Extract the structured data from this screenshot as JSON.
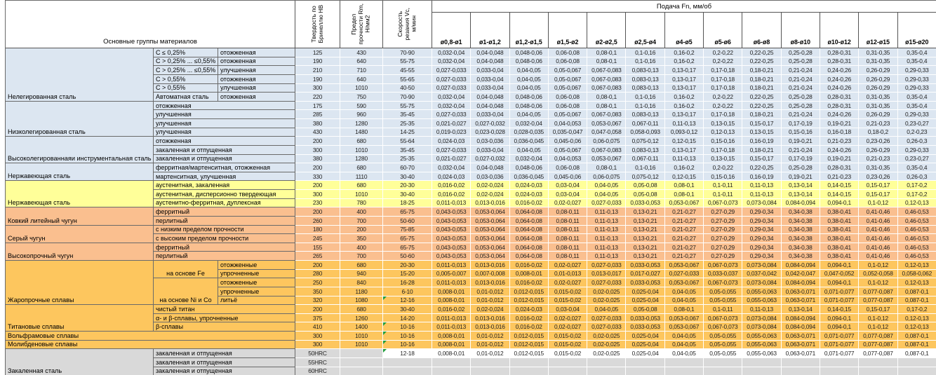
{
  "header": {
    "materials_label": "Основные группы материалов",
    "col_hb": "Твердость по\nБринеллю HB",
    "col_rm": "Предел\nпрочности Rm,\nН/мм2",
    "col_vc": "Скорость\nрезания Vc,\nм/мин",
    "feed_label": "Подача Fn, мм/об",
    "diameters": [
      "ø0,8-ø1",
      "ø1-ø1,2",
      "ø1,2-ø1,5",
      "ø1,5-ø2",
      "ø2-ø2,5",
      "ø2,5-ø4",
      "ø4-ø5",
      "ø5-ø6",
      "ø6-ø8",
      "ø8-ø10",
      "ø10-ø12",
      "ø12-ø15",
      "ø15-ø20"
    ]
  },
  "colors": {
    "blue": "#dce6f1",
    "yellow": "#ffff99",
    "orange": "#fabf8f",
    "gold": "#fdc65e",
    "gray": "#d9d9d9",
    "marker": "#1f9d3a"
  },
  "patterns": {
    "A": [
      "0,032-0,04",
      "0,04-0,048",
      "0,048-0,06",
      "0,06-0,08",
      "0,08-0,1",
      "0,1-0,16",
      "0,16-0,2",
      "0,2-0,22",
      "0,22-0,25",
      "0,25-0,28",
      "0,28-0,31",
      "0,31-0,35",
      "0,35-0,4"
    ],
    "B": [
      "0,027-0,033",
      "0,033-0,04",
      "0,04-0,05",
      "0,05-0,067",
      "0,067-0,083",
      "0,083-0,13",
      "0,13-0,17",
      "0,17-0,18",
      "0,18-0,21",
      "0,21-0,24",
      "0,24-0,26",
      "0,26-0,29",
      "0,29-0,33"
    ],
    "C": [
      "0,021-0,027",
      "0,027-0,032",
      "0,032-0,04",
      "0,04-0,053",
      "0,053-0,067",
      "0,067-0,11",
      "0,11-0,13",
      "0,13-0,15",
      "0,15-0,17",
      "0,17-0,19",
      "0,19-0,21",
      "0,21-0,23",
      "0,23-0,27"
    ],
    "D": [
      "0,019-0,023",
      "0,023-0,028",
      "0,028-0,035",
      "0,035-0,047",
      "0,047-0,058",
      "0,058-0,093",
      "0,093-0,12",
      "0,12-0,13",
      "0,13-0,15",
      "0,15-0,16",
      "0,16-0,18",
      "0,18-0,2",
      "0,2-0,23"
    ],
    "E": [
      "0,024-0,03",
      "0,03-0,036",
      "0,036-0,045",
      "0,045-0,06",
      "0,06-0,075",
      "0,075-0,12",
      "0,12-0,15",
      "0,15-0,16",
      "0,16-0,19",
      "0,19-0,21",
      "0,21-0,23",
      "0,23-0,26",
      "0,26-0,3"
    ],
    "F": [
      "0,016-0,02",
      "0,02-0,024",
      "0,024-0,03",
      "0,03-0,04",
      "0,04-0,05",
      "0,05-0,08",
      "0,08-0,1",
      "0,1-0,11",
      "0,11-0,13",
      "0,13-0,14",
      "0,14-0,15",
      "0,15-0,17",
      "0,17-0,2"
    ],
    "G": [
      "0,011-0,013",
      "0,013-0,016",
      "0,016-0,02",
      "0,02-0,027",
      "0,027-0,033",
      "0,033-0,053",
      "0,053-0,067",
      "0,067-0,073",
      "0,073-0,084",
      "0,084-0,094",
      "0,094-0,1",
      "0,1-0,12",
      "0,12-0,13"
    ],
    "H": [
      "0,043-0,053",
      "0,053-0,064",
      "0,064-0,08",
      "0,08-0,11",
      "0,11-0,13",
      "0,13-0,21",
      "0,21-0,27",
      "0,27-0,29",
      "0,29-0,34",
      "0,34-0,38",
      "0,38-0,41",
      "0,41-0,46",
      "0,46-0,53"
    ],
    "I": [
      "0,005-0,007",
      "0,007-0,008",
      "0,008-0,01",
      "0,01-0,013",
      "0,013-0,017",
      "0,017-0,027",
      "0,027-0,033",
      "0,033-0,037",
      "0,037-0,042",
      "0,042-0,047",
      "0,047-0,052",
      "0,052-0,058",
      "0,058-0,062"
    ],
    "J": [
      "0,008-0,01",
      "0,01-0,012",
      "0,012-0,015",
      "0,015-0,02",
      "0,02-0,025",
      "0,025-0,04",
      "0,04-0,05",
      "0,05-0,055",
      "0,055-0,063",
      "0,063-0,071",
      "0,071-0,077",
      "0,077-0,087",
      "0,087-0,1"
    ]
  },
  "groups": [
    {
      "name": "Нелегированная сталь",
      "color": "blue",
      "type": "split",
      "rows": [
        [
          "C ≤ 0,25%",
          "отожженная",
          "125",
          "430",
          "70-90",
          "A",
          0
        ],
        [
          "C > 0,25% ... ≤0,55%",
          "отожженная",
          "190",
          "640",
          "55-75",
          "A",
          0
        ],
        [
          "C > 0,25% ... ≤0,55%",
          "улучшенная",
          "210",
          "710",
          "45-55",
          "B",
          0
        ],
        [
          "C > 0,55%",
          "отожженная",
          "190",
          "640",
          "55-65",
          "B",
          0
        ],
        [
          "C > 0,55%",
          "улучшенная",
          "300",
          "1010",
          "40-50",
          "B",
          0
        ],
        [
          "Автоматная сталь",
          "отожженная",
          "220",
          "750",
          "70-90",
          "A",
          0
        ]
      ]
    },
    {
      "name": "Низколегированная сталь",
      "color": "blue",
      "type": "merged",
      "rows": [
        [
          "отожженная",
          "175",
          "590",
          "55-75",
          "A",
          0
        ],
        [
          "улучшенная",
          "285",
          "960",
          "35-45",
          "B",
          0
        ],
        [
          "улучшенная",
          "380",
          "1280",
          "25-35",
          "C",
          0
        ],
        [
          "улучшенная",
          "430",
          "1480",
          "14-25",
          "D",
          0
        ]
      ]
    },
    {
      "name": "Высоколегированнаяи инструментальная сталь",
      "color": "blue",
      "type": "merged",
      "rows": [
        [
          "отожженная",
          "200",
          "680",
          "55-64",
          "E",
          0
        ],
        [
          "закаленная и отпущенная",
          "300",
          "1010",
          "35-45",
          "B",
          0
        ],
        [
          "закаленная и отпущенная",
          "380",
          "1280",
          "25-35",
          "C",
          0
        ]
      ]
    },
    {
      "name": "Нержавеющая сталь",
      "color": "blue",
      "type": "merged",
      "rows": [
        [
          "ферритная/мартенситная, отожженная",
          "200",
          "680",
          "60-70",
          "A",
          0
        ],
        [
          "мартенситная, улучшенная",
          "330",
          "1110",
          "30-40",
          "E",
          0
        ]
      ]
    },
    {
      "name": "Нержавеющая сталь",
      "color": "yellow",
      "type": "merged",
      "rows": [
        [
          "аустенитная, закаленная",
          "200",
          "680",
          "20-30",
          "F",
          0
        ],
        [
          "аустенитная, дисперсионно твердеющая",
          "300",
          "1010",
          "30-40",
          "F",
          0
        ],
        [
          "аустенитно-ферритная, дуплексная",
          "230",
          "780",
          "18-25",
          "G",
          0
        ]
      ]
    },
    {
      "name": "Ковкий литейный чугун",
      "color": "orange",
      "type": "merged",
      "rows": [
        [
          "ферритный",
          "200",
          "400",
          "65-75",
          "H",
          0
        ],
        [
          "перлитный",
          "260",
          "700",
          "50-60",
          "H",
          0
        ]
      ]
    },
    {
      "name": "Серый чугун",
      "color": "orange",
      "type": "merged",
      "rows": [
        [
          "с низким пределом прочности",
          "180",
          "200",
          "75-85",
          "H",
          0
        ],
        [
          "с высоким пределом прочности",
          "245",
          "350",
          "65-75",
          "H",
          0
        ]
      ]
    },
    {
      "name": "Высокопрочный чугун",
      "color": "orange",
      "type": "merged",
      "rows": [
        [
          "ферритный",
          "155",
          "400",
          "65-75",
          "H",
          0
        ],
        [
          "перлитный",
          "265",
          "700",
          "50-60",
          "H",
          0
        ]
      ]
    },
    {
      "name": "Жаропрочные сплавы",
      "color": "gold",
      "type": "mids",
      "mids": [
        {
          "label": "на основе Fe",
          "rows": [
            [
              "отожженные",
              "200",
              "680",
              "20-30",
              "G",
              0
            ],
            [
              "упрочненные",
              "280",
              "940",
              "15-20",
              "I",
              0
            ]
          ]
        },
        {
          "label": "на основе Ni и Co",
          "rows": [
            [
              "отожженные",
              "250",
              "840",
              "16-28",
              "G",
              0
            ],
            [
              "упрочненные",
              "350",
              "1180",
              "6-10",
              "J",
              0
            ],
            [
              "литьё",
              "320",
              "1080",
              "12-16",
              "J",
              1
            ]
          ]
        }
      ]
    },
    {
      "name": "Титановые сплавы",
      "color": "gold",
      "type": "merged",
      "rows": [
        [
          "чистый титан",
          "200",
          "680",
          "30-40",
          "F",
          0
        ],
        [
          "α- и β-сплавы, упрочненные",
          "375",
          "1260",
          "14-20",
          "G",
          0
        ],
        [
          "β-сплавы",
          "410",
          "1400",
          "10-16",
          "G",
          1
        ]
      ]
    },
    {
      "name": "Вольфрамовые сплавы",
      "color": "gold",
      "type": "full",
      "rows": [
        [
          "300",
          "1010",
          "10-16",
          "J",
          1
        ]
      ]
    },
    {
      "name": "Молибденовые сплавы",
      "color": "gold",
      "type": "full",
      "rows": [
        [
          "300",
          "1010",
          "10-16",
          "J",
          1
        ]
      ]
    },
    {
      "name": "Закаленная сталь",
      "color": "gray",
      "type": "merged",
      "rows": [
        [
          "закаленная и отпущенная",
          "50HRC",
          "",
          "12-18",
          "J",
          1
        ],
        [
          "закаленная и отпущенная",
          "55HRC",
          "",
          "",
          "",
          0
        ],
        [
          "закаленная и отпущенная",
          "60HRC",
          "",
          "",
          "",
          0
        ]
      ]
    }
  ]
}
